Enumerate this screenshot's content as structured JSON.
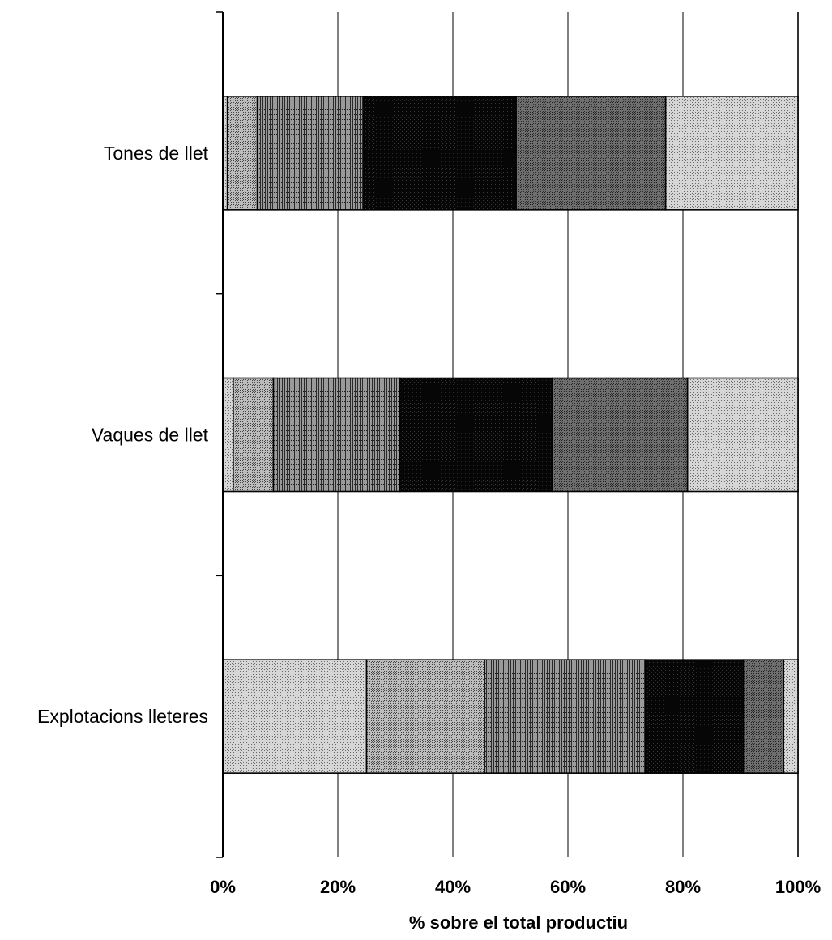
{
  "chart_data": {
    "type": "bar",
    "orientation": "horizontal",
    "stacked": "percent",
    "title": "",
    "xlabel": "% sobre el total productiu",
    "ylabel": "",
    "xlim": [
      0,
      100
    ],
    "x_ticks": [
      "0%",
      "20%",
      "40%",
      "60%",
      "80%",
      "100%"
    ],
    "grid": "vertical",
    "legend": "none",
    "categories": [
      "Tones de llet",
      "Vaques de llet",
      "Explotacions lleteres"
    ],
    "series": [
      {
        "values": [
          0.8,
          1.8,
          25.0
        ],
        "color": "#c4c4c4",
        "pattern": "light-dots"
      },
      {
        "values": [
          5.2,
          7.0,
          20.5
        ],
        "color": "#a8a8a8",
        "pattern": "medium-dots"
      },
      {
        "values": [
          18.5,
          22.0,
          28.0
        ],
        "color": "#777777",
        "pattern": "vertical-lines"
      },
      {
        "values": [
          26.5,
          26.5,
          17.0
        ],
        "color": "#0d0d0d",
        "pattern": "solid-black"
      },
      {
        "values": [
          26.0,
          23.5,
          7.0
        ],
        "color": "#5e5e5e",
        "pattern": "dark-dots"
      },
      {
        "values": [
          23.0,
          19.2,
          2.5
        ],
        "color": "#bdbdbd",
        "pattern": "light-dots"
      }
    ]
  }
}
